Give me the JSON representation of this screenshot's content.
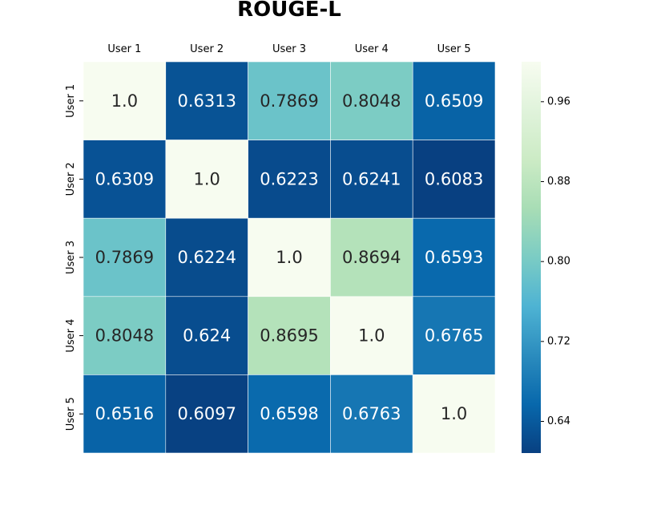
{
  "chart_data": {
    "type": "heatmap",
    "title": "ROUGE-L",
    "x_labels": [
      "User 1",
      "User 2",
      "User 3",
      "User 4",
      "User 5"
    ],
    "y_labels": [
      "User 1",
      "User 2",
      "User 3",
      "User 4",
      "User 5"
    ],
    "values": [
      [
        1.0,
        0.6313,
        0.7869,
        0.8048,
        0.6509
      ],
      [
        0.6309,
        1.0,
        0.6223,
        0.6241,
        0.6083
      ],
      [
        0.7869,
        0.6224,
        1.0,
        0.8694,
        0.6593
      ],
      [
        0.8048,
        0.624,
        0.8695,
        1.0,
        0.6765
      ],
      [
        0.6516,
        0.6097,
        0.6598,
        0.6763,
        1.0
      ]
    ],
    "cell_labels": [
      [
        "1.0",
        "0.6313",
        "0.7869",
        "0.8048",
        "0.6509"
      ],
      [
        "0.6309",
        "1.0",
        "0.6223",
        "0.6241",
        "0.6083"
      ],
      [
        "0.7869",
        "0.6224",
        "1.0",
        "0.8694",
        "0.6593"
      ],
      [
        "0.8048",
        "0.624",
        "0.8695",
        "1.0",
        "0.6765"
      ],
      [
        "0.6516",
        "0.6097",
        "0.6598",
        "0.6763",
        "1.0"
      ]
    ],
    "colormap": "GnBu_r",
    "color_range": [
      0.6083,
      1.0
    ],
    "colorbar_ticks": [
      0.64,
      0.72,
      0.8,
      0.88,
      0.96
    ],
    "colorbar_tick_labels": [
      "0.64",
      "0.72",
      "0.80",
      "0.88",
      "0.96"
    ],
    "colorbar_placement": "right",
    "x_tick_position": "top"
  }
}
